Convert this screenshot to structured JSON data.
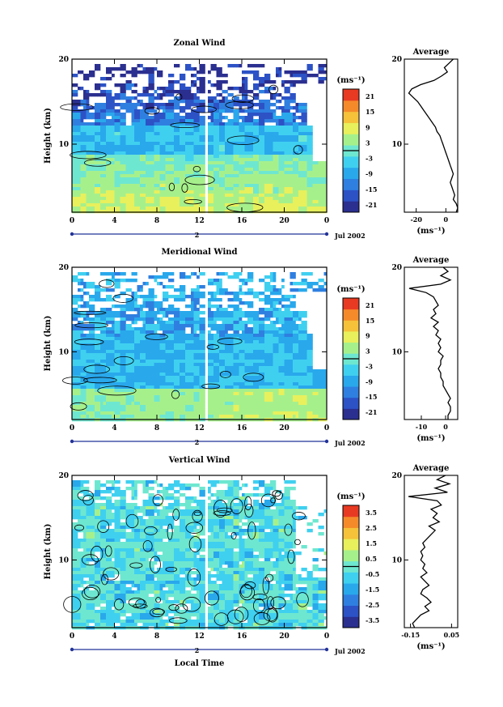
{
  "figure": {
    "xlabel": "Local Time",
    "date_label": "Jul 2002",
    "day_marker": "2",
    "colorbar_unit": "(ms⁻¹)",
    "avg_unit": "(ms⁻¹)",
    "colormap": [
      "#2b2f8f",
      "#2c52c6",
      "#2f7fe0",
      "#29a8ec",
      "#3fd0f0",
      "#6ee7d0",
      "#a6f08c",
      "#e8f05c",
      "#f5c23a",
      "#f58a2a",
      "#e83a22"
    ]
  },
  "chart_data": [
    {
      "type": "heatmap",
      "title": "Zonal Wind",
      "ylabel": "Height (km)",
      "x_ticks": [
        "0",
        "4",
        "8",
        "12",
        "16",
        "20",
        "0"
      ],
      "y_ticks": [
        "20",
        "10"
      ],
      "xlim": [
        0,
        24
      ],
      "ylim": [
        2,
        20
      ],
      "colorbar": {
        "ticks": [
          "21",
          "15",
          "9",
          "3",
          "-3",
          "-9",
          "-15",
          "-21"
        ],
        "range": [
          -24,
          24
        ],
        "zero_line": true
      },
      "average": {
        "title": "Average",
        "x_ticks": [
          "-20",
          "0"
        ],
        "xlim": [
          -28,
          8
        ],
        "y_ticks": [
          "20",
          "10"
        ],
        "profile": {
          "height": [
            20,
            19.5,
            19,
            18.5,
            18,
            17.5,
            17,
            16.5,
            16,
            15.5,
            15,
            14.5,
            14,
            13.5,
            13,
            12.5,
            12,
            11.5,
            11,
            10.5,
            10,
            9.5,
            9,
            8.5,
            8,
            7.5,
            7,
            6.5,
            6,
            5.5,
            5,
            4.5,
            4,
            3.5,
            3,
            2.5,
            2
          ],
          "value": [
            5,
            2,
            -1,
            1,
            -3,
            -8,
            -17,
            -23,
            -25,
            -22,
            -19,
            -17,
            -15,
            -13,
            -11,
            -9,
            -7,
            -6,
            -4,
            -3,
            -2,
            -1,
            0,
            1,
            2,
            3,
            4,
            5,
            4,
            3,
            4,
            5,
            6,
            5,
            7,
            8,
            7
          ]
        }
      }
    },
    {
      "type": "heatmap",
      "title": "Meridional Wind",
      "ylabel": "Height (km)",
      "x_ticks": [
        "0",
        "4",
        "8",
        "12",
        "16",
        "20",
        "0"
      ],
      "y_ticks": [
        "20",
        "10"
      ],
      "xlim": [
        0,
        24
      ],
      "ylim": [
        2,
        20
      ],
      "colorbar": {
        "ticks": [
          "21",
          "15",
          "9",
          "3",
          "-3",
          "-9",
          "-15",
          "-21"
        ],
        "range": [
          -24,
          24
        ],
        "zero_line": true
      },
      "average": {
        "title": "Average",
        "x_ticks": [
          "-10",
          "0"
        ],
        "xlim": [
          -17,
          5
        ],
        "y_ticks": [
          "20",
          "10"
        ],
        "profile": {
          "height": [
            20,
            19.5,
            19,
            18.5,
            18,
            17.5,
            17,
            16.5,
            16,
            15.5,
            15,
            14.5,
            14,
            13.5,
            13,
            12.5,
            12,
            11.5,
            11,
            10.5,
            10,
            9.5,
            9,
            8.5,
            8,
            7.5,
            7,
            6.5,
            6,
            5.5,
            5,
            4.5,
            4,
            3.5,
            3,
            2.5,
            2
          ],
          "value": [
            -1,
            1,
            -2,
            2,
            -2,
            -15,
            -8,
            -5,
            -4,
            -3,
            -5,
            -4,
            -6,
            -3,
            -5,
            -3,
            -4,
            -2,
            -3,
            -2,
            -3,
            -1,
            -2,
            -2,
            -3,
            -2,
            -2,
            -1,
            -1,
            0,
            1,
            2,
            1,
            2,
            2,
            1,
            1
          ]
        }
      }
    },
    {
      "type": "heatmap",
      "title": "Vertical Wind",
      "ylabel": "Height (km)",
      "xlabel": "Local Time",
      "x_ticks": [
        "0",
        "4",
        "8",
        "12",
        "16",
        "20",
        "0"
      ],
      "y_ticks": [
        "20",
        "10"
      ],
      "xlim": [
        0,
        24
      ],
      "ylim": [
        2,
        20
      ],
      "colorbar": {
        "ticks": [
          "3.5",
          "2.5",
          "1.5",
          "0.5",
          "-0.5",
          "-1.5",
          "-2.5",
          "-3.5"
        ],
        "range": [
          -4,
          4
        ],
        "zero_line": true
      },
      "average": {
        "title": "Average",
        "x_ticks": [
          "-0.15",
          "0.05"
        ],
        "xlim": [
          -0.18,
          0.08
        ],
        "y_ticks": [
          "20",
          "10"
        ],
        "profile": {
          "height": [
            20,
            19.5,
            19,
            18.5,
            18,
            17.5,
            17,
            16.5,
            16,
            15.5,
            15,
            14.5,
            14,
            13.5,
            13,
            12.5,
            12,
            11.5,
            11,
            10.5,
            10,
            9.5,
            9,
            8.5,
            8,
            7.5,
            7,
            6.5,
            6,
            5.5,
            5,
            4.5,
            4,
            3.5,
            3,
            2.5,
            2
          ],
          "value": [
            0.02,
            -0.02,
            0.04,
            -0.03,
            0.03,
            -0.16,
            -0.02,
            0.0,
            -0.05,
            -0.02,
            -0.04,
            -0.01,
            -0.06,
            -0.03,
            -0.05,
            -0.07,
            -0.09,
            -0.08,
            -0.1,
            -0.09,
            -0.1,
            -0.08,
            -0.09,
            -0.07,
            -0.1,
            -0.08,
            -0.06,
            -0.09,
            -0.1,
            -0.07,
            -0.05,
            -0.08,
            -0.06,
            -0.1,
            -0.12,
            -0.14,
            -0.13
          ]
        }
      }
    }
  ]
}
